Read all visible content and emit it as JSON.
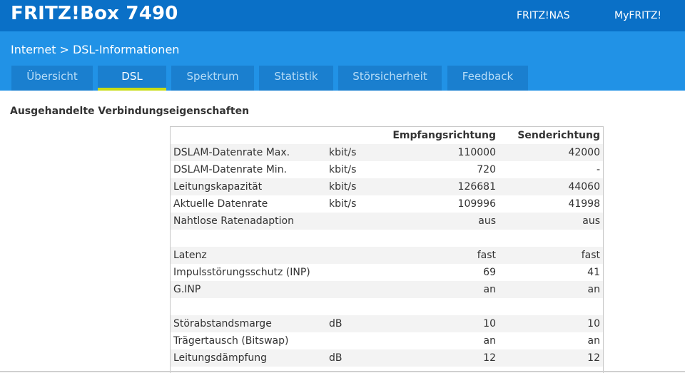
{
  "header": {
    "brand": "FRITZ!Box 7490",
    "links": [
      "FRITZ!NAS",
      "MyFRITZ!"
    ]
  },
  "breadcrumb": {
    "parent": "Internet",
    "separator": ">",
    "current": "DSL-Informationen"
  },
  "tabs": [
    {
      "label": "Übersicht"
    },
    {
      "label": "DSL"
    },
    {
      "label": "Spektrum"
    },
    {
      "label": "Statistik"
    },
    {
      "label": "Störsicherheit"
    },
    {
      "label": "Feedback"
    }
  ],
  "active_tab": "DSL",
  "section": {
    "title": "Ausgehandelte Verbindungseigenschaften"
  },
  "table": {
    "headers": [
      "",
      "",
      "Empfangsrichtung",
      "Senderichtung"
    ],
    "rows": [
      [
        "DSLAM-Datenrate Max.",
        "kbit/s",
        "110000",
        "42000"
      ],
      [
        "DSLAM-Datenrate Min.",
        "kbit/s",
        "720",
        "-"
      ],
      [
        "Leitungskapazität",
        "kbit/s",
        "126681",
        "44060"
      ],
      [
        "Aktuelle Datenrate",
        "kbit/s",
        "109996",
        "41998"
      ],
      [
        "Nahtlose Ratenadaption",
        "",
        "aus",
        "aus"
      ],
      [
        "",
        "",
        "",
        ""
      ],
      [
        "Latenz",
        "",
        "fast",
        "fast"
      ],
      [
        "Impulsstörungsschutz (INP)",
        "",
        "69",
        "41"
      ],
      [
        "G.INP",
        "",
        "an",
        "an"
      ],
      [
        "",
        "",
        "",
        ""
      ],
      [
        "Störabstandsmarge",
        "dB",
        "10",
        "10"
      ],
      [
        "Trägertausch (Bitswap)",
        "",
        "an",
        "an"
      ],
      [
        "Leitungsdämpfung",
        "dB",
        "12",
        "12"
      ]
    ]
  },
  "colors": {
    "topbar": "#0a70c7",
    "subbar": "#2192e6",
    "tab": "#1a7fcf",
    "active_tab_indicator": "#c8dc14"
  }
}
